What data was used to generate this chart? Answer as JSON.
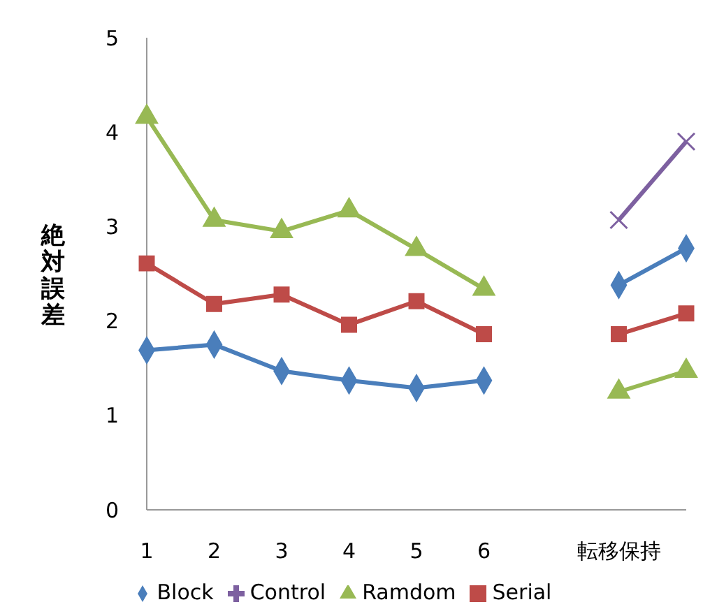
{
  "chart_data": {
    "type": "line",
    "ylabel": "絶対誤差",
    "categories": [
      "1",
      "2",
      "3",
      "4",
      "5",
      "6",
      null,
      "転移保持",
      null
    ],
    "ylim": [
      0,
      5
    ],
    "yticks": [
      0,
      1,
      2,
      3,
      4,
      5
    ],
    "grid": false,
    "legend": "bottom",
    "line_style": "solid",
    "series": [
      {
        "name": "Block",
        "color": "#4a7ebb",
        "marker": "diamond",
        "values": [
          1.69,
          1.75,
          1.47,
          1.37,
          1.29,
          1.37,
          null,
          2.38,
          2.77
        ]
      },
      {
        "name": "Serial",
        "color": "#be4b48",
        "marker": "square",
        "values": [
          2.61,
          2.18,
          2.28,
          1.96,
          2.21,
          1.86,
          null,
          1.86,
          2.08
        ]
      },
      {
        "name": "Ramdom",
        "color": "#98b954",
        "marker": "triangle",
        "values": [
          4.16,
          3.07,
          2.95,
          3.17,
          2.76,
          2.34,
          null,
          1.25,
          1.47
        ]
      },
      {
        "name": "Control",
        "color": "#7d60a0",
        "marker": "cross",
        "values": [
          null,
          null,
          null,
          null,
          null,
          null,
          null,
          3.07,
          3.9
        ]
      }
    ]
  }
}
